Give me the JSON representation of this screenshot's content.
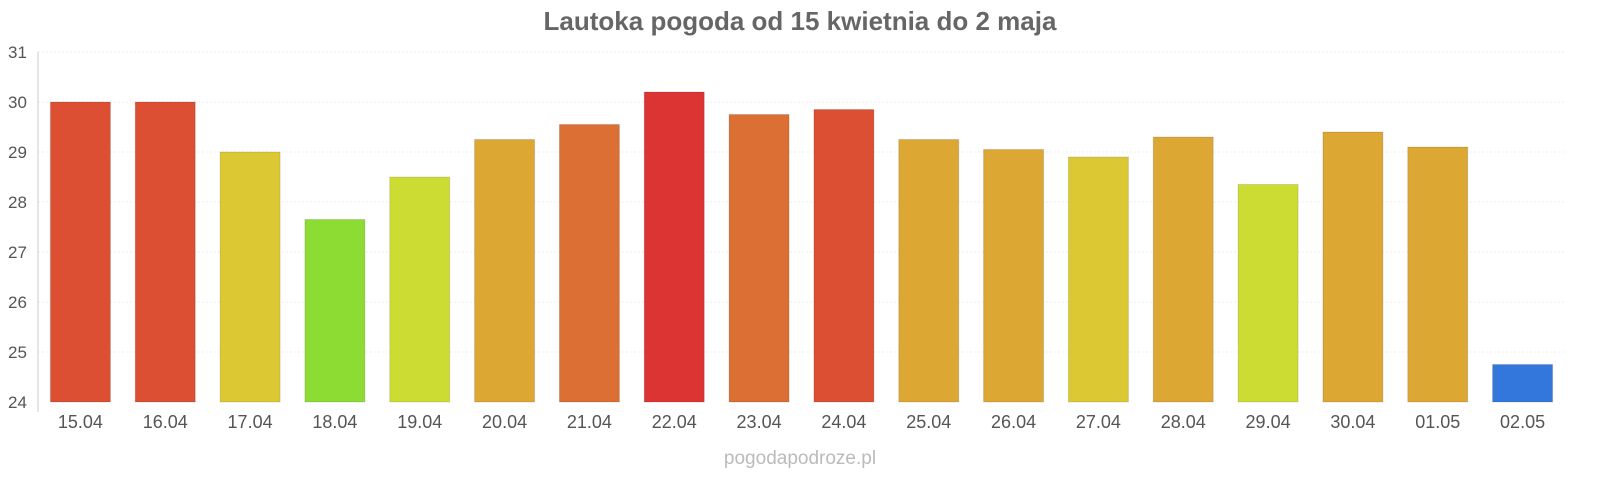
{
  "chart_data": {
    "type": "bar",
    "title": "Lautoka pogoda od 15 kwietnia do 2 maja",
    "categories": [
      "15.04",
      "16.04",
      "17.04",
      "18.04",
      "19.04",
      "20.04",
      "21.04",
      "22.04",
      "23.04",
      "24.04",
      "25.04",
      "26.04",
      "27.04",
      "28.04",
      "29.04",
      "30.04",
      "01.05",
      "02.05"
    ],
    "values": [
      30.0,
      30.0,
      29.0,
      27.65,
      28.5,
      29.25,
      29.55,
      30.2,
      29.75,
      29.85,
      29.25,
      29.05,
      28.9,
      29.3,
      28.35,
      29.4,
      29.1,
      24.75
    ],
    "colors": [
      "#dd4f33",
      "#dd4f33",
      "#dcc833",
      "#8ddc33",
      "#ccdc33",
      "#dca733",
      "#dc6f33",
      "#dc3333",
      "#dc6f33",
      "#dd4f33",
      "#dca733",
      "#dca733",
      "#dcc833",
      "#dca733",
      "#ccdc33",
      "#dca733",
      "#dca733",
      "#3377dc"
    ],
    "ylim": [
      24,
      31
    ],
    "yticks": [
      "24",
      "25",
      "26",
      "27",
      "28",
      "29",
      "30",
      "31"
    ],
    "xlabel": "",
    "ylabel": "",
    "grid": true
  },
  "watermark": "pogodapodroze.pl"
}
